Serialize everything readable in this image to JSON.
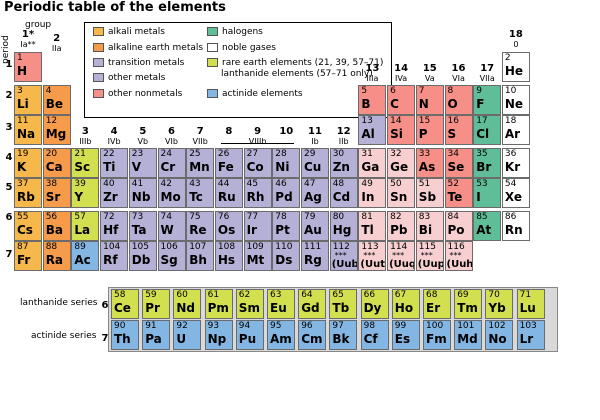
{
  "title": "Periodic table of the elements",
  "labels": {
    "group": "group",
    "period": "period",
    "lanthanide_series": "lanthanide series",
    "actinide_series": "actinide series"
  },
  "colors": {
    "alkali": "#f7b84b",
    "alkaline": "#f59b4a",
    "transition": "#b5b0d6",
    "other_metal": "#b5b0d6",
    "nonmetal": "#f58f88",
    "halogen": "#5fbd98",
    "noble": "#ffffff",
    "rare_earth": "#d2e04f",
    "actinide": "#84b6e4",
    "other_nonmetal_light": "#f7cfd0",
    "hydrogen": "#f58f88",
    "frame": "#d9d9d9"
  },
  "legend": [
    {
      "label": "alkali metals",
      "color": "#f7b84b"
    },
    {
      "label": "alkaline earth metals",
      "color": "#f59b4a"
    },
    {
      "label": "transition metals",
      "color": "#b5b0d6"
    },
    {
      "label": "other metals",
      "color": "#b5b0d6"
    },
    {
      "label": "other nonmetals",
      "color": "#f58f88"
    },
    {
      "label": "halogens",
      "color": "#5fbd98"
    },
    {
      "label": "noble gases",
      "color": "#ffffff"
    },
    {
      "label": "rare earth elements (21, 39, 57–71)",
      "color": "#d2e04f"
    },
    {
      "label": "lanthanide elements (57–71 only)",
      "color": ""
    },
    {
      "label": "actinide elements",
      "color": "#84b6e4"
    }
  ],
  "groups": [
    {
      "n": "1*",
      "s": "Ia**"
    },
    {
      "n": "2",
      "s": "IIa"
    },
    {
      "n": "3",
      "s": "IIIb"
    },
    {
      "n": "4",
      "s": "IVb"
    },
    {
      "n": "5",
      "s": "Vb"
    },
    {
      "n": "6",
      "s": "VIb"
    },
    {
      "n": "7",
      "s": "VIIb"
    },
    {
      "n": "8",
      "s": ""
    },
    {
      "n": "9",
      "s": "VIIIb"
    },
    {
      "n": "10",
      "s": ""
    },
    {
      "n": "11",
      "s": "Ib"
    },
    {
      "n": "12",
      "s": "IIb"
    },
    {
      "n": "13",
      "s": "IIIa"
    },
    {
      "n": "14",
      "s": "IVa"
    },
    {
      "n": "15",
      "s": "Va"
    },
    {
      "n": "16",
      "s": "VIa"
    },
    {
      "n": "17",
      "s": "VIIa"
    },
    {
      "n": "18",
      "s": "0"
    }
  ],
  "periods": [
    "1",
    "2",
    "3",
    "4",
    "5",
    "6",
    "7"
  ],
  "series_periods": [
    "6",
    "7"
  ],
  "elements": [
    {
      "z": "1",
      "s": "H",
      "r": 1,
      "c": 1,
      "k": "hydrogen"
    },
    {
      "z": "2",
      "s": "He",
      "r": 1,
      "c": 18,
      "k": "noble"
    },
    {
      "z": "3",
      "s": "Li",
      "r": 2,
      "c": 1,
      "k": "alkali"
    },
    {
      "z": "4",
      "s": "Be",
      "r": 2,
      "c": 2,
      "k": "alkaline"
    },
    {
      "z": "5",
      "s": "B",
      "r": 2,
      "c": 13,
      "k": "nonmetal"
    },
    {
      "z": "6",
      "s": "C",
      "r": 2,
      "c": 14,
      "k": "nonmetal"
    },
    {
      "z": "7",
      "s": "N",
      "r": 2,
      "c": 15,
      "k": "nonmetal"
    },
    {
      "z": "8",
      "s": "O",
      "r": 2,
      "c": 16,
      "k": "nonmetal"
    },
    {
      "z": "9",
      "s": "F",
      "r": 2,
      "c": 17,
      "k": "halogen"
    },
    {
      "z": "10",
      "s": "Ne",
      "r": 2,
      "c": 18,
      "k": "noble"
    },
    {
      "z": "11",
      "s": "Na",
      "r": 3,
      "c": 1,
      "k": "alkali"
    },
    {
      "z": "12",
      "s": "Mg",
      "r": 3,
      "c": 2,
      "k": "alkaline"
    },
    {
      "z": "13",
      "s": "Al",
      "r": 3,
      "c": 13,
      "k": "other_metal"
    },
    {
      "z": "14",
      "s": "Si",
      "r": 3,
      "c": 14,
      "k": "nonmetal"
    },
    {
      "z": "15",
      "s": "P",
      "r": 3,
      "c": 15,
      "k": "nonmetal"
    },
    {
      "z": "16",
      "s": "S",
      "r": 3,
      "c": 16,
      "k": "nonmetal"
    },
    {
      "z": "17",
      "s": "Cl",
      "r": 3,
      "c": 17,
      "k": "halogen"
    },
    {
      "z": "18",
      "s": "Ar",
      "r": 3,
      "c": 18,
      "k": "noble"
    },
    {
      "z": "19",
      "s": "K",
      "r": 4,
      "c": 1,
      "k": "alkali"
    },
    {
      "z": "20",
      "s": "Ca",
      "r": 4,
      "c": 2,
      "k": "alkaline"
    },
    {
      "z": "21",
      "s": "Sc",
      "r": 4,
      "c": 3,
      "k": "rare_earth"
    },
    {
      "z": "22",
      "s": "Ti",
      "r": 4,
      "c": 4,
      "k": "transition"
    },
    {
      "z": "23",
      "s": "V",
      "r": 4,
      "c": 5,
      "k": "transition"
    },
    {
      "z": "24",
      "s": "Cr",
      "r": 4,
      "c": 6,
      "k": "transition"
    },
    {
      "z": "25",
      "s": "Mn",
      "r": 4,
      "c": 7,
      "k": "transition"
    },
    {
      "z": "26",
      "s": "Fe",
      "r": 4,
      "c": 8,
      "k": "transition"
    },
    {
      "z": "27",
      "s": "Co",
      "r": 4,
      "c": 9,
      "k": "transition"
    },
    {
      "z": "28",
      "s": "Ni",
      "r": 4,
      "c": 10,
      "k": "transition"
    },
    {
      "z": "29",
      "s": "Cu",
      "r": 4,
      "c": 11,
      "k": "transition"
    },
    {
      "z": "30",
      "s": "Zn",
      "r": 4,
      "c": 12,
      "k": "transition"
    },
    {
      "z": "31",
      "s": "Ga",
      "r": 4,
      "c": 13,
      "k": "other_nonmetal_light"
    },
    {
      "z": "32",
      "s": "Ge",
      "r": 4,
      "c": 14,
      "k": "other_nonmetal_light"
    },
    {
      "z": "33",
      "s": "As",
      "r": 4,
      "c": 15,
      "k": "nonmetal"
    },
    {
      "z": "34",
      "s": "Se",
      "r": 4,
      "c": 16,
      "k": "nonmetal"
    },
    {
      "z": "35",
      "s": "Br",
      "r": 4,
      "c": 17,
      "k": "halogen"
    },
    {
      "z": "36",
      "s": "Kr",
      "r": 4,
      "c": 18,
      "k": "noble"
    },
    {
      "z": "37",
      "s": "Rb",
      "r": 5,
      "c": 1,
      "k": "alkali"
    },
    {
      "z": "38",
      "s": "Sr",
      "r": 5,
      "c": 2,
      "k": "alkaline"
    },
    {
      "z": "39",
      "s": "Y",
      "r": 5,
      "c": 3,
      "k": "rare_earth"
    },
    {
      "z": "40",
      "s": "Zr",
      "r": 5,
      "c": 4,
      "k": "transition"
    },
    {
      "z": "41",
      "s": "Nb",
      "r": 5,
      "c": 5,
      "k": "transition"
    },
    {
      "z": "42",
      "s": "Mo",
      "r": 5,
      "c": 6,
      "k": "transition"
    },
    {
      "z": "43",
      "s": "Tc",
      "r": 5,
      "c": 7,
      "k": "transition"
    },
    {
      "z": "44",
      "s": "Ru",
      "r": 5,
      "c": 8,
      "k": "transition"
    },
    {
      "z": "45",
      "s": "Rh",
      "r": 5,
      "c": 9,
      "k": "transition"
    },
    {
      "z": "46",
      "s": "Pd",
      "r": 5,
      "c": 10,
      "k": "transition"
    },
    {
      "z": "47",
      "s": "Ag",
      "r": 5,
      "c": 11,
      "k": "transition"
    },
    {
      "z": "48",
      "s": "Cd",
      "r": 5,
      "c": 12,
      "k": "transition"
    },
    {
      "z": "49",
      "s": "In",
      "r": 5,
      "c": 13,
      "k": "other_nonmetal_light"
    },
    {
      "z": "50",
      "s": "Sn",
      "r": 5,
      "c": 14,
      "k": "other_nonmetal_light"
    },
    {
      "z": "51",
      "s": "Sb",
      "r": 5,
      "c": 15,
      "k": "other_nonmetal_light"
    },
    {
      "z": "52",
      "s": "Te",
      "r": 5,
      "c": 16,
      "k": "nonmetal"
    },
    {
      "z": "53",
      "s": "I",
      "r": 5,
      "c": 17,
      "k": "halogen"
    },
    {
      "z": "54",
      "s": "Xe",
      "r": 5,
      "c": 18,
      "k": "noble"
    },
    {
      "z": "55",
      "s": "Cs",
      "r": 6,
      "c": 1,
      "k": "alkali"
    },
    {
      "z": "56",
      "s": "Ba",
      "r": 6,
      "c": 2,
      "k": "alkaline"
    },
    {
      "z": "57",
      "s": "La",
      "r": 6,
      "c": 3,
      "k": "rare_earth"
    },
    {
      "z": "72",
      "s": "Hf",
      "r": 6,
      "c": 4,
      "k": "transition"
    },
    {
      "z": "73",
      "s": "Ta",
      "r": 6,
      "c": 5,
      "k": "transition"
    },
    {
      "z": "74",
      "s": "W",
      "r": 6,
      "c": 6,
      "k": "transition"
    },
    {
      "z": "75",
      "s": "Re",
      "r": 6,
      "c": 7,
      "k": "transition"
    },
    {
      "z": "76",
      "s": "Os",
      "r": 6,
      "c": 8,
      "k": "transition"
    },
    {
      "z": "77",
      "s": "Ir",
      "r": 6,
      "c": 9,
      "k": "transition"
    },
    {
      "z": "78",
      "s": "Pt",
      "r": 6,
      "c": 10,
      "k": "transition"
    },
    {
      "z": "79",
      "s": "Au",
      "r": 6,
      "c": 11,
      "k": "transition"
    },
    {
      "z": "80",
      "s": "Hg",
      "r": 6,
      "c": 12,
      "k": "transition"
    },
    {
      "z": "81",
      "s": "Tl",
      "r": 6,
      "c": 13,
      "k": "other_nonmetal_light"
    },
    {
      "z": "82",
      "s": "Pb",
      "r": 6,
      "c": 14,
      "k": "other_nonmetal_light"
    },
    {
      "z": "83",
      "s": "Bi",
      "r": 6,
      "c": 15,
      "k": "other_nonmetal_light"
    },
    {
      "z": "84",
      "s": "Po",
      "r": 6,
      "c": 16,
      "k": "other_nonmetal_light"
    },
    {
      "z": "85",
      "s": "At",
      "r": 6,
      "c": 17,
      "k": "halogen"
    },
    {
      "z": "86",
      "s": "Rn",
      "r": 6,
      "c": 18,
      "k": "noble"
    },
    {
      "z": "87",
      "s": "Fr",
      "r": 7,
      "c": 1,
      "k": "alkali"
    },
    {
      "z": "88",
      "s": "Ra",
      "r": 7,
      "c": 2,
      "k": "alkaline"
    },
    {
      "z": "89",
      "s": "Ac",
      "r": 7,
      "c": 3,
      "k": "actinide"
    },
    {
      "z": "104",
      "s": "Rf",
      "r": 7,
      "c": 4,
      "k": "transition"
    },
    {
      "z": "105",
      "s": "Db",
      "r": 7,
      "c": 5,
      "k": "transition"
    },
    {
      "z": "106",
      "s": "Sg",
      "r": 7,
      "c": 6,
      "k": "transition"
    },
    {
      "z": "107",
      "s": "Bh",
      "r": 7,
      "c": 7,
      "k": "transition"
    },
    {
      "z": "108",
      "s": "Hs",
      "r": 7,
      "c": 8,
      "k": "transition"
    },
    {
      "z": "109",
      "s": "Mt",
      "r": 7,
      "c": 9,
      "k": "transition"
    },
    {
      "z": "110",
      "s": "Ds",
      "r": 7,
      "c": 10,
      "k": "transition"
    },
    {
      "z": "111",
      "s": "Rg",
      "r": 7,
      "c": 11,
      "k": "transition"
    },
    {
      "z": "112",
      "s": "(Uub)",
      "r": 7,
      "c": 12,
      "k": "transition",
      "a": "***"
    },
    {
      "z": "113",
      "s": "(Uut)",
      "r": 7,
      "c": 13,
      "k": "other_nonmetal_light",
      "a": "***"
    },
    {
      "z": "114",
      "s": "(Uuq)",
      "r": 7,
      "c": 14,
      "k": "other_nonmetal_light",
      "a": "***"
    },
    {
      "z": "115",
      "s": "(Uup)",
      "r": 7,
      "c": 15,
      "k": "other_nonmetal_light",
      "a": "***"
    },
    {
      "z": "116",
      "s": "(Uuh)",
      "r": 7,
      "c": 16,
      "k": "other_nonmetal_light",
      "a": "***"
    }
  ],
  "lanthanides": [
    {
      "z": "58",
      "s": "Ce"
    },
    {
      "z": "59",
      "s": "Pr"
    },
    {
      "z": "60",
      "s": "Nd"
    },
    {
      "z": "61",
      "s": "Pm"
    },
    {
      "z": "62",
      "s": "Sm"
    },
    {
      "z": "63",
      "s": "Eu"
    },
    {
      "z": "64",
      "s": "Gd"
    },
    {
      "z": "65",
      "s": "Tb"
    },
    {
      "z": "66",
      "s": "Dy"
    },
    {
      "z": "67",
      "s": "Ho"
    },
    {
      "z": "68",
      "s": "Er"
    },
    {
      "z": "69",
      "s": "Tm"
    },
    {
      "z": "70",
      "s": "Yb"
    },
    {
      "z": "71",
      "s": "Lu"
    }
  ],
  "actinides": [
    {
      "z": "90",
      "s": "Th"
    },
    {
      "z": "91",
      "s": "Pa"
    },
    {
      "z": "92",
      "s": "U"
    },
    {
      "z": "93",
      "s": "Np"
    },
    {
      "z": "94",
      "s": "Pu"
    },
    {
      "z": "95",
      "s": "Am"
    },
    {
      "z": "96",
      "s": "Cm"
    },
    {
      "z": "97",
      "s": "Bk"
    },
    {
      "z": "98",
      "s": "Cf"
    },
    {
      "z": "99",
      "s": "Es"
    },
    {
      "z": "100",
      "s": "Fm"
    },
    {
      "z": "101",
      "s": "Md"
    },
    {
      "z": "102",
      "s": "No"
    },
    {
      "z": "103",
      "s": "Lr"
    }
  ]
}
